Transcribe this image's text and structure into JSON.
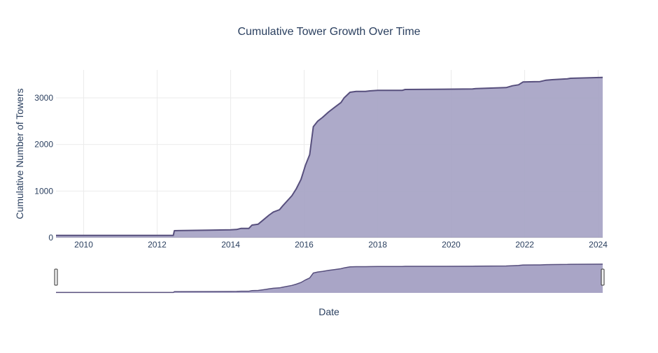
{
  "chart_data": {
    "type": "area",
    "title": "Cumulative Tower Growth Over Time",
    "xlabel": "Date",
    "ylabel": "Cumulative Number of Towers",
    "xlim": [
      "2009-04-01",
      "2024-02-15"
    ],
    "ylim": [
      0,
      3600
    ],
    "x_ticks": [
      "2010",
      "2012",
      "2014",
      "2016",
      "2018",
      "2020",
      "2022",
      "2024"
    ],
    "y_ticks": [
      0,
      1000,
      2000,
      3000
    ],
    "grid": true,
    "range_slider": true,
    "series": [
      {
        "x": [
          "2009-04-01",
          "2010-06-01",
          "2012-01-01",
          "2012-06-10",
          "2012-06-20",
          "2013-06-01",
          "2014-01-01",
          "2014-03-01",
          "2014-04-15",
          "2014-07-01",
          "2014-08-01",
          "2014-10-01",
          "2014-11-15",
          "2015-01-15",
          "2015-03-01",
          "2015-05-01",
          "2015-06-01",
          "2015-09-01",
          "2015-10-15",
          "2015-12-01",
          "2016-01-15",
          "2016-02-10",
          "2016-02-25",
          "2016-04-01",
          "2016-05-15",
          "2016-07-01",
          "2016-09-01",
          "2016-11-01",
          "2017-01-01",
          "2017-02-01",
          "2017-04-01",
          "2017-06-01",
          "2017-09-01",
          "2017-10-15",
          "2018-01-01",
          "2018-09-01",
          "2018-10-01",
          "2020-08-01",
          "2020-09-01",
          "2021-07-01",
          "2021-09-01",
          "2021-11-01",
          "2021-12-15",
          "2022-06-01",
          "2022-08-01",
          "2022-10-01",
          "2023-03-01",
          "2023-04-01",
          "2024-02-15"
        ],
        "y": [
          50,
          50,
          50,
          50,
          150,
          160,
          170,
          175,
          200,
          200,
          270,
          290,
          370,
          480,
          550,
          600,
          680,
          900,
          1050,
          1250,
          1560,
          1700,
          1780,
          2380,
          2500,
          2580,
          2700,
          2800,
          2900,
          3000,
          3120,
          3140,
          3140,
          3150,
          3160,
          3160,
          3180,
          3190,
          3200,
          3220,
          3260,
          3280,
          3340,
          3350,
          3380,
          3390,
          3410,
          3420,
          3440
        ],
        "color": "#574f7d",
        "fill": "#a9a5c6"
      }
    ]
  }
}
